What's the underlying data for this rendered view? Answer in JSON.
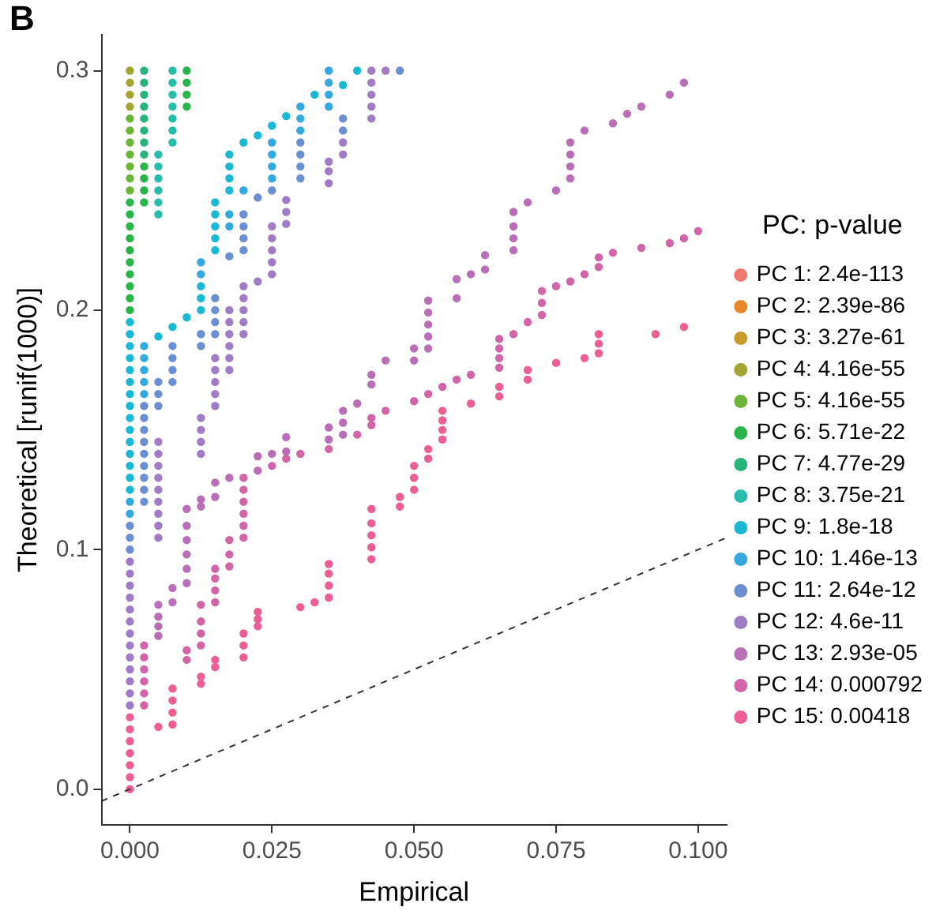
{
  "chart_data": {
    "type": "scatter",
    "xlabel": "Empirical",
    "ylabel": "Theoretical [runif(1000)]",
    "legend_title": "PC: p-value",
    "legend": "right",
    "grid": false,
    "marker": "circle",
    "annotations": [
      "B"
    ],
    "xlim": [
      -0.005,
      0.105
    ],
    "xticks": [
      {
        "value": 0,
        "label": "0.000"
      },
      {
        "value": 0.025,
        "label": "0.025"
      },
      {
        "value": 0.05,
        "label": "0.050"
      },
      {
        "value": 0.075,
        "label": "0.075"
      },
      {
        "value": 0.1,
        "label": "0.100"
      }
    ],
    "ylim": [
      -0.015,
      0.315
    ],
    "yticks": [
      {
        "value": 0,
        "label": "0.0"
      },
      {
        "value": 0.1,
        "label": "0.1"
      },
      {
        "value": 0.2,
        "label": "0.2"
      },
      {
        "value": 0.3,
        "label": "0.3"
      }
    ],
    "series": [
      {
        "name": "PC 1: 2.4e-113",
        "color": "#f07a70"
      },
      {
        "name": "PC 2: 2.39e-86",
        "color": "#e8872a"
      },
      {
        "name": "PC 3: 3.27e-61",
        "color": "#c99a2a"
      },
      {
        "name": "PC 4: 4.16e-55",
        "color": "#a3a532",
        "x": [
          0,
          0,
          0,
          0
        ],
        "values": [
          0.285,
          0.29,
          0.295,
          0.3
        ]
      },
      {
        "name": "PC 5: 4.16e-55",
        "color": "#6fb43a",
        "x": [
          0,
          0,
          0,
          0,
          0,
          0,
          0
        ],
        "values": [
          0.25,
          0.255,
          0.26,
          0.265,
          0.27,
          0.275,
          0.28
        ]
      },
      {
        "name": "PC 6: 5.71e-22",
        "color": "#2ab44a",
        "x": [
          0,
          0,
          0,
          0,
          0,
          0,
          0,
          0,
          0,
          0,
          0.0025,
          0.0025,
          0.0025,
          0.0025,
          0.01,
          0.01,
          0.01,
          0.01
        ],
        "values": [
          0.2,
          0.205,
          0.21,
          0.215,
          0.22,
          0.225,
          0.23,
          0.235,
          0.24,
          0.245,
          0.245,
          0.25,
          0.255,
          0.26,
          0.285,
          0.29,
          0.295,
          0.3
        ]
      },
      {
        "name": "PC 7: 4.77e-29",
        "color": "#28b37a",
        "x": [
          0.0025,
          0.0025,
          0.0025,
          0.0025,
          0.0025,
          0.0025,
          0.0025,
          0.0025
        ],
        "values": [
          0.265,
          0.27,
          0.275,
          0.28,
          0.285,
          0.29,
          0.295,
          0.3
        ]
      },
      {
        "name": "PC 8: 3.75e-21",
        "color": "#2abcaa",
        "x": [
          0.005,
          0.005,
          0.005,
          0.005,
          0.005,
          0.005,
          0.0075,
          0.0075,
          0.0075,
          0.0075,
          0.0075,
          0.0075,
          0.0075
        ],
        "values": [
          0.24,
          0.245,
          0.25,
          0.255,
          0.26,
          0.265,
          0.27,
          0.275,
          0.28,
          0.285,
          0.29,
          0.295,
          0.3
        ]
      },
      {
        "name": "PC 9: 1.8e-18",
        "color": "#1ab8d3",
        "x": [
          0,
          0,
          0,
          0,
          0,
          0,
          0,
          0,
          0,
          0,
          0,
          0,
          0,
          0,
          0,
          0.005,
          0.0075,
          0.01,
          0.0125,
          0.0125,
          0.0125,
          0.015,
          0.015,
          0.015,
          0.015,
          0.015,
          0.0175,
          0.0175,
          0.0175,
          0.0175,
          0.02,
          0.0225,
          0.025,
          0.0275,
          0.0325,
          0.0375,
          0.04
        ],
        "values": [
          0.125,
          0.13,
          0.135,
          0.14,
          0.145,
          0.15,
          0.155,
          0.16,
          0.165,
          0.17,
          0.175,
          0.18,
          0.185,
          0.19,
          0.195,
          0.189,
          0.193,
          0.197,
          0.2,
          0.205,
          0.21,
          0.225,
          0.23,
          0.235,
          0.24,
          0.245,
          0.25,
          0.255,
          0.26,
          0.265,
          0.27,
          0.273,
          0.277,
          0.281,
          0.29,
          0.294,
          0.3
        ]
      },
      {
        "name": "PC 10: 1.46e-13",
        "color": "#35a8e0",
        "x": [
          0,
          0,
          0.0025,
          0.0025,
          0.0025,
          0.0025,
          0.0025,
          0.0125,
          0.0125,
          0.0175,
          0.0175,
          0.02,
          0.025,
          0.025,
          0.025,
          0.025,
          0.03,
          0.03,
          0.03,
          0.035,
          0.035,
          0.035,
          0.035
        ],
        "values": [
          0.115,
          0.12,
          0.165,
          0.17,
          0.175,
          0.18,
          0.185,
          0.215,
          0.22,
          0.235,
          0.24,
          0.25,
          0.255,
          0.26,
          0.265,
          0.27,
          0.275,
          0.28,
          0.285,
          0.285,
          0.29,
          0.295,
          0.3
        ]
      },
      {
        "name": "PC 11: 2.64e-12",
        "color": "#6b8fd0",
        "x": [
          0,
          0,
          0,
          0.0025,
          0.0025,
          0.0025,
          0.0025,
          0.0025,
          0.0025,
          0.0025,
          0.0025,
          0.0025,
          0.005,
          0.005,
          0.005,
          0.0075,
          0.0075,
          0.0075,
          0.0075,
          0.0125,
          0.0125,
          0.015,
          0.015,
          0.015,
          0.015,
          0.0175,
          0.02,
          0.02,
          0.02,
          0.02,
          0.0225,
          0.025,
          0.03,
          0.03,
          0.03,
          0.03,
          0.0375,
          0.0375,
          0.0475
        ],
        "values": [
          0.1,
          0.105,
          0.11,
          0.12,
          0.125,
          0.13,
          0.135,
          0.14,
          0.145,
          0.15,
          0.155,
          0.16,
          0.16,
          0.165,
          0.17,
          0.17,
          0.175,
          0.18,
          0.185,
          0.185,
          0.19,
          0.19,
          0.195,
          0.2,
          0.205,
          0.2225,
          0.225,
          0.23,
          0.235,
          0.24,
          0.247,
          0.25,
          0.255,
          0.26,
          0.265,
          0.27,
          0.275,
          0.28,
          0.3
        ]
      },
      {
        "name": "PC 12: 4.6e-11",
        "color": "#a07cc4",
        "x": [
          0,
          0,
          0,
          0,
          0,
          0,
          0,
          0,
          0,
          0,
          0,
          0,
          0,
          0.005,
          0.005,
          0.005,
          0.005,
          0.005,
          0.005,
          0.005,
          0.005,
          0.005,
          0.0125,
          0.0125,
          0.0125,
          0.0125,
          0.015,
          0.015,
          0.015,
          0.015,
          0.015,
          0.0175,
          0.0175,
          0.0175,
          0.0175,
          0.0175,
          0.0175,
          0.02,
          0.02,
          0.02,
          0.02,
          0.02,
          0.0225,
          0.025,
          0.025,
          0.025,
          0.025,
          0.025,
          0.0275,
          0.0275,
          0.0275,
          0.035,
          0.035,
          0.035,
          0.0375,
          0.0375,
          0.0425,
          0.0425,
          0.0425,
          0.0425,
          0.0425,
          0.045
        ],
        "values": [
          0.035,
          0.04,
          0.045,
          0.05,
          0.055,
          0.06,
          0.065,
          0.07,
          0.075,
          0.08,
          0.085,
          0.09,
          0.095,
          0.105,
          0.11,
          0.115,
          0.12,
          0.125,
          0.13,
          0.135,
          0.14,
          0.145,
          0.14,
          0.145,
          0.15,
          0.155,
          0.16,
          0.165,
          0.17,
          0.175,
          0.18,
          0.175,
          0.18,
          0.185,
          0.19,
          0.195,
          0.2,
          0.19,
          0.195,
          0.2,
          0.205,
          0.21,
          0.212,
          0.215,
          0.22,
          0.225,
          0.23,
          0.235,
          0.236,
          0.241,
          0.246,
          0.253,
          0.258,
          0.262,
          0.265,
          0.27,
          0.28,
          0.285,
          0.29,
          0.295,
          0.3,
          0.3
        ]
      },
      {
        "name": "PC 13: 2.93e-05",
        "color": "#b86fb5",
        "x": [
          0.005,
          0.005,
          0.005,
          0.005,
          0.0075,
          0.0075,
          0.01,
          0.01,
          0.01,
          0.01,
          0.01,
          0.01,
          0.0125,
          0.0125,
          0.015,
          0.015,
          0.0175,
          0.0225,
          0.0225,
          0.025,
          0.0275,
          0.0275,
          0.035,
          0.035,
          0.0375,
          0.0375,
          0.0375,
          0.04,
          0.0425,
          0.0425,
          0.045,
          0.05,
          0.05,
          0.0525,
          0.0525,
          0.0525,
          0.0525,
          0.0525,
          0.0575,
          0.0575,
          0.06,
          0.0625,
          0.0625,
          0.0675,
          0.0675,
          0.0675,
          0.0675,
          0.07,
          0.075,
          0.0775,
          0.0775,
          0.0775,
          0.0775,
          0.08,
          0.085,
          0.0875,
          0.09,
          0.095,
          0.0975
        ],
        "values": [
          0.064,
          0.068,
          0.072,
          0.077,
          0.078,
          0.084,
          0.086,
          0.092,
          0.098,
          0.104,
          0.11,
          0.117,
          0.118,
          0.121,
          0.122,
          0.128,
          0.13,
          0.133,
          0.139,
          0.14,
          0.141,
          0.147,
          0.146,
          0.151,
          0.148,
          0.153,
          0.158,
          0.161,
          0.169,
          0.173,
          0.179,
          0.179,
          0.184,
          0.184,
          0.189,
          0.194,
          0.199,
          0.204,
          0.205,
          0.213,
          0.215,
          0.217,
          0.223,
          0.225,
          0.23,
          0.235,
          0.241,
          0.245,
          0.25,
          0.255,
          0.26,
          0.265,
          0.27,
          0.275,
          0.278,
          0.282,
          0.285,
          0.29,
          0.295
        ]
      },
      {
        "name": "PC 14: 0.000792",
        "color": "#d265a8",
        "x": [
          0.0025,
          0.0025,
          0.0025,
          0.0025,
          0.0025,
          0.0025,
          0.01,
          0.01,
          0.0125,
          0.0125,
          0.0125,
          0.0125,
          0.015,
          0.015,
          0.015,
          0.015,
          0.0175,
          0.0175,
          0.0175,
          0.02,
          0.02,
          0.02,
          0.02,
          0.02,
          0.02,
          0.025,
          0.0275,
          0.03,
          0.035,
          0.04,
          0.0425,
          0.0425,
          0.045,
          0.05,
          0.0525,
          0.055,
          0.0575,
          0.06,
          0.065,
          0.065,
          0.065,
          0.065,
          0.0675,
          0.07,
          0.0725,
          0.0725,
          0.0725,
          0.075,
          0.0775,
          0.08,
          0.0825,
          0.0825,
          0.085,
          0.09,
          0.095,
          0.0975,
          0.1
        ],
        "values": [
          0.035,
          0.04,
          0.045,
          0.05,
          0.055,
          0.06,
          0.054,
          0.058,
          0.06,
          0.065,
          0.07,
          0.077,
          0.078,
          0.083,
          0.088,
          0.092,
          0.093,
          0.098,
          0.104,
          0.105,
          0.11,
          0.115,
          0.12,
          0.125,
          0.13,
          0.135,
          0.138,
          0.14,
          0.142,
          0.148,
          0.152,
          0.155,
          0.158,
          0.162,
          0.165,
          0.168,
          0.171,
          0.173,
          0.176,
          0.18,
          0.184,
          0.188,
          0.19,
          0.195,
          0.198,
          0.203,
          0.208,
          0.21,
          0.212,
          0.215,
          0.218,
          0.222,
          0.224,
          0.226,
          0.228,
          0.23,
          0.233
        ]
      },
      {
        "name": "PC 15: 0.00418",
        "color": "#ec5e94",
        "x": [
          0,
          0,
          0,
          0,
          0,
          0,
          0,
          0.005,
          0.0075,
          0.0075,
          0.0075,
          0.0075,
          0.0125,
          0.0125,
          0.015,
          0.015,
          0.02,
          0.02,
          0.02,
          0.0225,
          0.0225,
          0.0225,
          0.03,
          0.0325,
          0.035,
          0.035,
          0.035,
          0.035,
          0.0425,
          0.0425,
          0.0425,
          0.0425,
          0.0425,
          0.0475,
          0.0475,
          0.05,
          0.05,
          0.05,
          0.0525,
          0.0525,
          0.055,
          0.055,
          0.055,
          0.055,
          0.06,
          0.065,
          0.065,
          0.07,
          0.07,
          0.075,
          0.08,
          0.0825,
          0.0825,
          0.0825,
          0.0925,
          0.0975
        ],
        "values": [
          0,
          0.005,
          0.01,
          0.015,
          0.02,
          0.025,
          0.03,
          0.026,
          0.027,
          0.032,
          0.037,
          0.042,
          0.044,
          0.047,
          0.051,
          0.054,
          0.055,
          0.06,
          0.065,
          0.068,
          0.071,
          0.074,
          0.076,
          0.078,
          0.08,
          0.085,
          0.09,
          0.094,
          0.096,
          0.101,
          0.106,
          0.111,
          0.117,
          0.118,
          0.122,
          0.125,
          0.13,
          0.135,
          0.138,
          0.142,
          0.146,
          0.15,
          0.154,
          0.158,
          0.161,
          0.164,
          0.168,
          0.171,
          0.175,
          0.178,
          0.18,
          0.182,
          0.186,
          0.19,
          0.19,
          0.193
        ]
      },
      {
        "type": "line",
        "color": "#333333",
        "line_style": "dashed",
        "marker": "none",
        "x": [
          -0.005,
          0.105
        ],
        "values": [
          -0.005,
          0.105
        ]
      }
    ]
  }
}
